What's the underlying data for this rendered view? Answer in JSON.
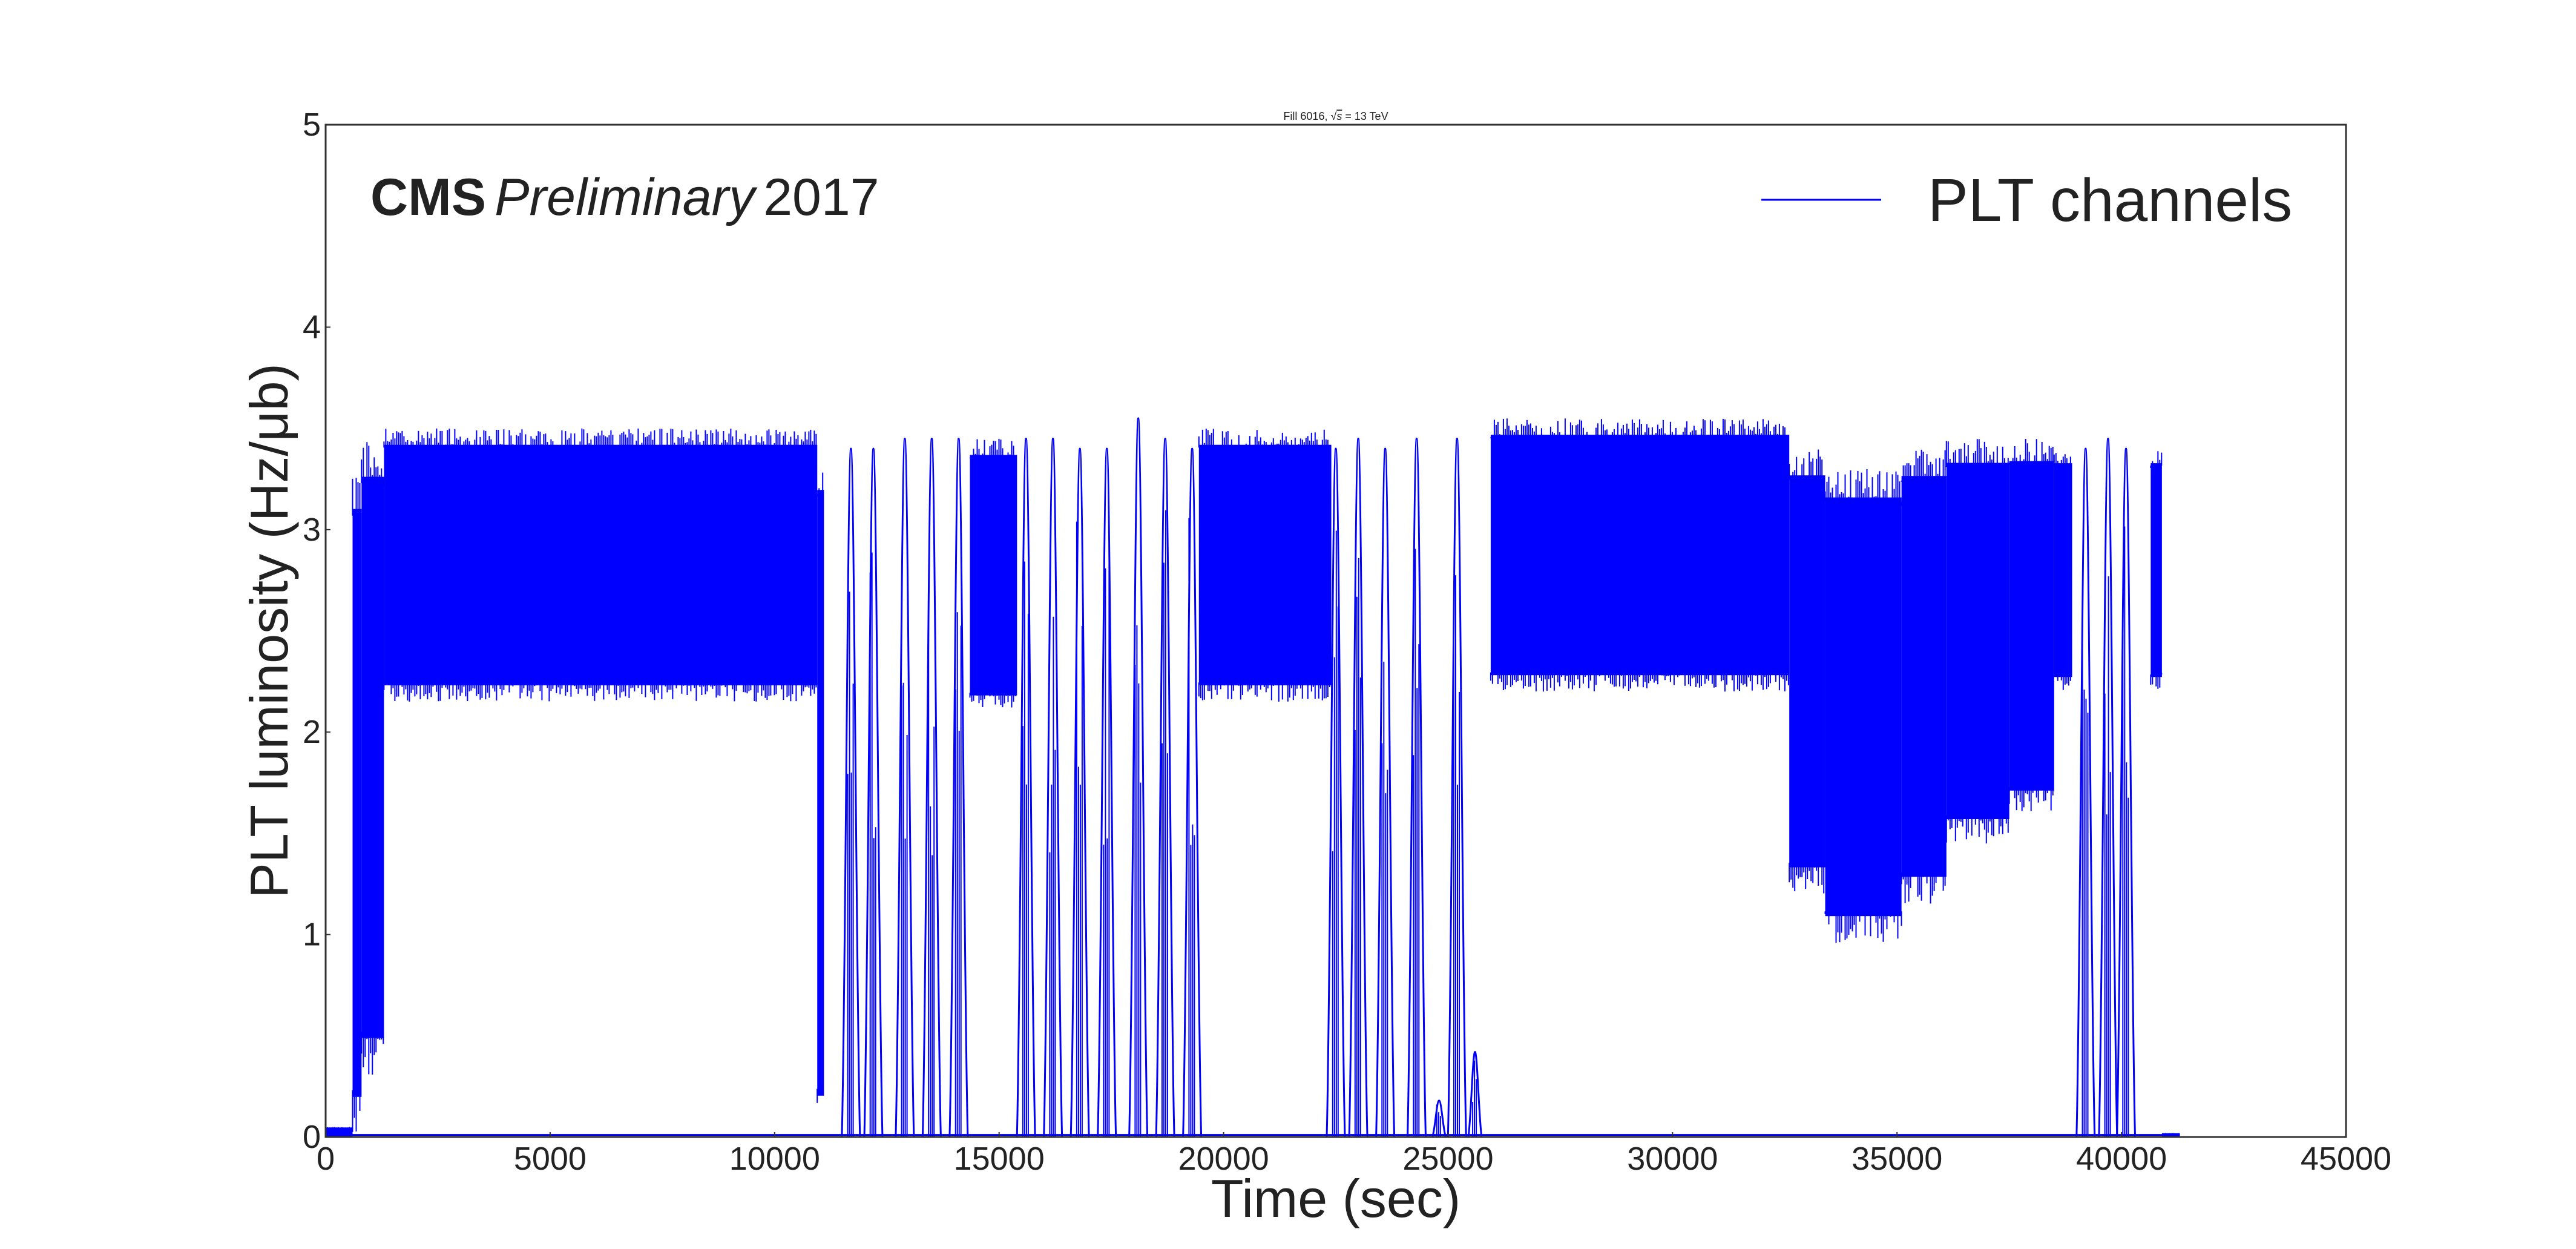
{
  "chart_data": {
    "type": "line",
    "title": "Fill 6016, √s = 13 TeV",
    "title_prefix": "Fill 6016, √",
    "title_sqrt_arg": "s",
    "title_suffix": " = 13 TeV",
    "xlabel": "Time (sec)",
    "ylabel": "PLT luminosity (Hz/μb)",
    "xlim": [
      0,
      45000
    ],
    "ylim": [
      0,
      5
    ],
    "x_ticks": [
      "0",
      "5000",
      "10000",
      "15000",
      "20000",
      "25000",
      "30000",
      "35000",
      "40000",
      "45000"
    ],
    "y_ticks": [
      "0",
      "1",
      "2",
      "3",
      "4",
      "5"
    ],
    "grid": false,
    "legend_placement": "top-right",
    "annotation": {
      "bold": "CMS",
      "italic": "Preliminary",
      "normal": "2017",
      "placement": "top-left"
    },
    "series": [
      {
        "name": "PLT channels",
        "color": "#0000ff",
        "envelope": [
          {
            "x_start": 0,
            "x_end": 600,
            "min": 0.0,
            "max": 0.05
          },
          {
            "x_start": 600,
            "x_end": 800,
            "min": 0.0,
            "max": 3.3
          },
          {
            "x_start": 800,
            "x_end": 1300,
            "min": 0.3,
            "max": 3.45
          },
          {
            "x_start": 1300,
            "x_end": 10950,
            "min": 2.15,
            "max": 3.5
          },
          {
            "x_start": 10950,
            "x_end": 11100,
            "min": 0.0,
            "max": 3.4
          },
          {
            "x_start": 14350,
            "x_end": 15400,
            "min": 2.1,
            "max": 3.45
          },
          {
            "x_start": 19450,
            "x_end": 22400,
            "min": 2.15,
            "max": 3.5
          },
          {
            "x_start": 25950,
            "x_end": 32600,
            "min": 2.2,
            "max": 3.55
          },
          {
            "x_start": 32600,
            "x_end": 33400,
            "min": 1.2,
            "max": 3.4
          },
          {
            "x_start": 33400,
            "x_end": 35100,
            "min": 0.95,
            "max": 3.3
          },
          {
            "x_start": 35100,
            "x_end": 36100,
            "min": 1.15,
            "max": 3.4
          },
          {
            "x_start": 36100,
            "x_end": 37500,
            "min": 1.45,
            "max": 3.45
          },
          {
            "x_start": 37500,
            "x_end": 38500,
            "min": 1.6,
            "max": 3.45
          },
          {
            "x_start": 38500,
            "x_end": 38900,
            "min": 2.2,
            "max": 3.4
          },
          {
            "x_start": 40650,
            "x_end": 40900,
            "min": 2.2,
            "max": 3.4
          },
          {
            "x_start": 40900,
            "x_end": 41300,
            "min": 0.0,
            "max": 0.02
          }
        ],
        "spikes": [
          {
            "x": 11700,
            "peak": 3.4
          },
          {
            "x": 12200,
            "peak": 3.4
          },
          {
            "x": 12900,
            "peak": 3.45
          },
          {
            "x": 13500,
            "peak": 3.45
          },
          {
            "x": 14100,
            "peak": 3.45
          },
          {
            "x": 15600,
            "peak": 3.45
          },
          {
            "x": 16200,
            "peak": 3.45
          },
          {
            "x": 16800,
            "peak": 3.4
          },
          {
            "x": 17400,
            "peak": 3.4
          },
          {
            "x": 18100,
            "peak": 3.55
          },
          {
            "x": 18700,
            "peak": 3.45
          },
          {
            "x": 19300,
            "peak": 3.4
          },
          {
            "x": 22500,
            "peak": 3.4
          },
          {
            "x": 23000,
            "peak": 3.45
          },
          {
            "x": 23600,
            "peak": 3.4
          },
          {
            "x": 24300,
            "peak": 3.45
          },
          {
            "x": 24800,
            "peak": 0.18
          },
          {
            "x": 25200,
            "peak": 3.45
          },
          {
            "x": 25600,
            "peak": 0.42
          },
          {
            "x": 39200,
            "peak": 3.4
          },
          {
            "x": 39700,
            "peak": 3.45
          },
          {
            "x": 40100,
            "peak": 3.4
          }
        ]
      }
    ]
  }
}
